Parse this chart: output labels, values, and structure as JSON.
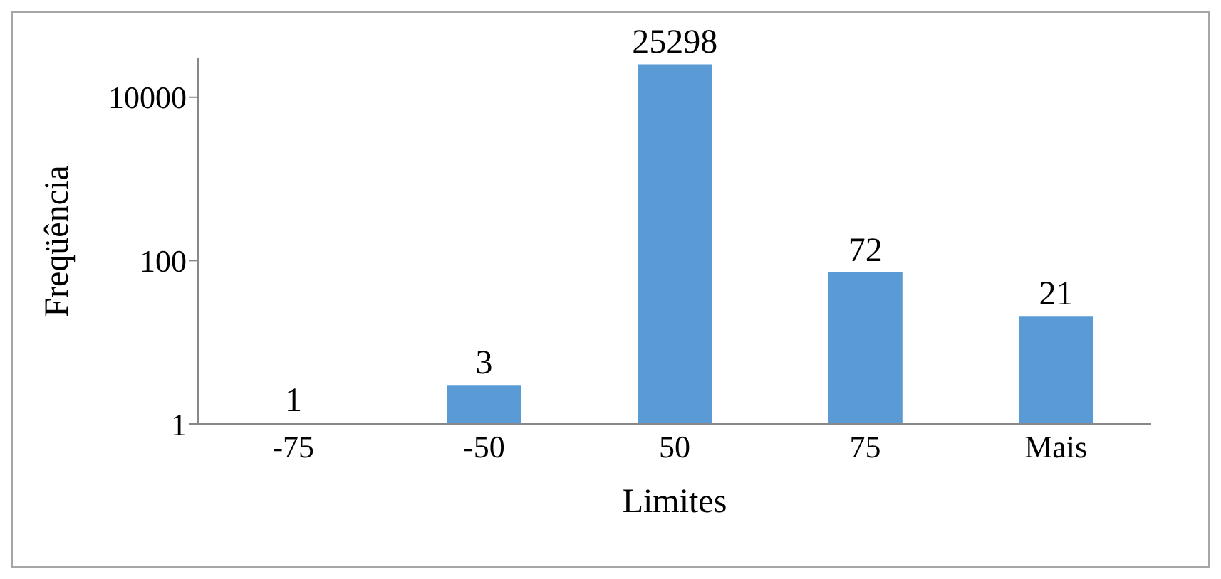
{
  "chart_data": {
    "type": "bar",
    "xlabel": "Limites",
    "ylabel": "Freqüência",
    "categories": [
      "-75",
      "-50",
      "50",
      "75",
      "Mais"
    ],
    "values": [
      1,
      3,
      25298,
      72,
      21
    ],
    "color": "#5b9bd5",
    "log": true,
    "ylim": [
      1,
      30000
    ],
    "yticks": [
      1,
      100,
      10000
    ],
    "grid": false,
    "data_labels": true
  }
}
